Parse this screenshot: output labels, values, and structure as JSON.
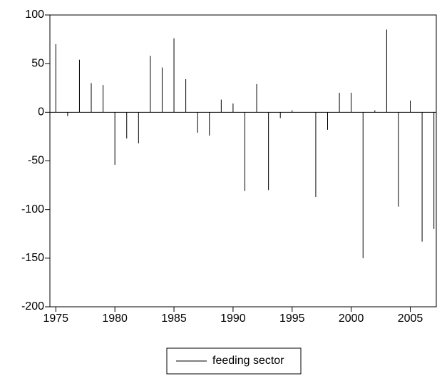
{
  "chart_data": {
    "type": "spike",
    "x": [
      1975,
      1976,
      1977,
      1978,
      1979,
      1980,
      1981,
      1982,
      1983,
      1984,
      1985,
      1986,
      1987,
      1988,
      1989,
      1990,
      1991,
      1992,
      1993,
      1994,
      1995,
      1996,
      1997,
      1998,
      1999,
      2000,
      2001,
      2002,
      2003,
      2004,
      2005,
      2006,
      2007
    ],
    "series": [
      {
        "name": "feeding sector",
        "color": "#000000",
        "values": [
          70,
          -4,
          54,
          30,
          28,
          -54,
          -27,
          -32,
          58,
          46,
          76,
          34,
          -21,
          -24,
          13,
          9,
          -81,
          29,
          -80,
          -6,
          2,
          0,
          -87,
          -18,
          20,
          20,
          -150,
          2,
          85,
          -97,
          12,
          -133,
          -120
        ]
      }
    ],
    "xlim": [
      1974.5,
      2007.2
    ],
    "xticks": [
      1975,
      1980,
      1985,
      1990,
      1995,
      2000,
      2005
    ],
    "ylim": [
      -200,
      100
    ],
    "yticks": [
      -200,
      -150,
      -100,
      -50,
      0,
      50,
      100
    ],
    "legend": "bottom"
  }
}
